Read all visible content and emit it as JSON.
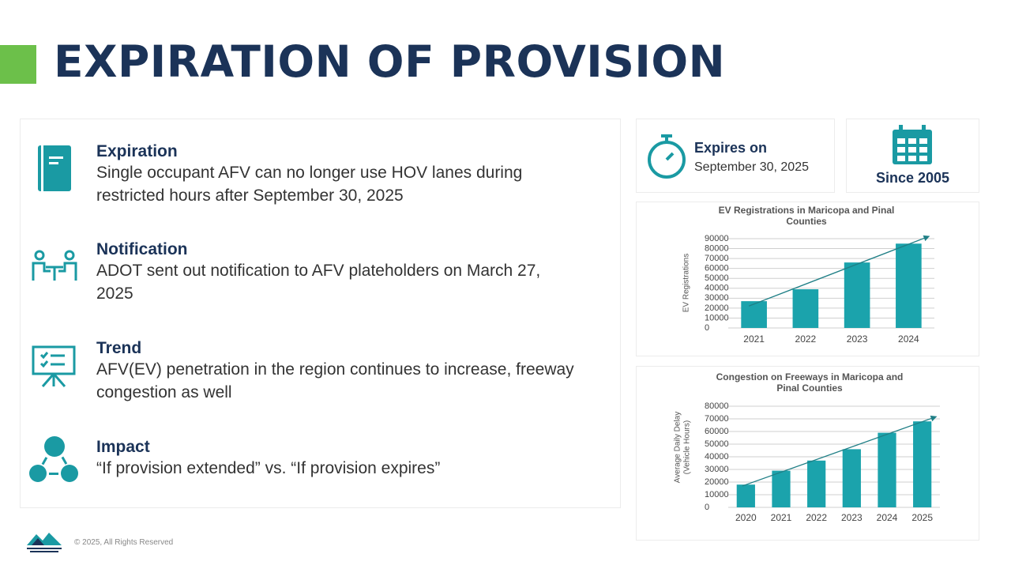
{
  "title": "EXPIRATION OF PROVISION",
  "items": [
    {
      "heading": "Expiration",
      "text": "Single occupant AFV can no longer use HOV lanes during restricted hours after September 30, 2025"
    },
    {
      "heading": "Notification",
      "text": "ADOT sent out notification to AFV plateholders on March 27, 2025"
    },
    {
      "heading": "Trend",
      "text": "AFV(EV) penetration in the region continues to increase, freeway congestion as well"
    },
    {
      "heading": "Impact",
      "text": "“If provision extended” vs. “If provision expires”"
    }
  ],
  "cards": {
    "expires_label": "Expires on",
    "expires_date": "September 30, 2025",
    "since": "Since 2005"
  },
  "footer": "© 2025, All Rights Reserved",
  "chart_data": [
    {
      "type": "bar",
      "title": [
        "EV Registrations in Maricopa and Pinal",
        "Counties"
      ],
      "ylabel": [
        "EV Registrations"
      ],
      "categories": [
        "2021",
        "2022",
        "2023",
        "2024"
      ],
      "values": [
        27000,
        39000,
        66000,
        85000
      ],
      "color": "#1ba3ac",
      "ylim": [
        0,
        90000
      ],
      "yticks": [
        0,
        10000,
        20000,
        30000,
        40000,
        50000,
        60000,
        70000,
        80000,
        90000
      ],
      "grid": true,
      "trendline": true
    },
    {
      "type": "bar",
      "title": [
        "Congestion on Freeways in Maricopa and",
        "Pinal Counties"
      ],
      "ylabel": [
        "Average Daily Delay",
        "(Vehicle Hours)"
      ],
      "categories": [
        "2020",
        "2021",
        "2022",
        "2023",
        "2024",
        "2025"
      ],
      "values": [
        18000,
        29000,
        37000,
        46000,
        59000,
        68000
      ],
      "color": "#1ba3ac",
      "ylim": [
        0,
        80000
      ],
      "yticks": [
        0,
        10000,
        20000,
        30000,
        40000,
        50000,
        60000,
        70000,
        80000
      ],
      "grid": true,
      "trendline": true
    }
  ]
}
